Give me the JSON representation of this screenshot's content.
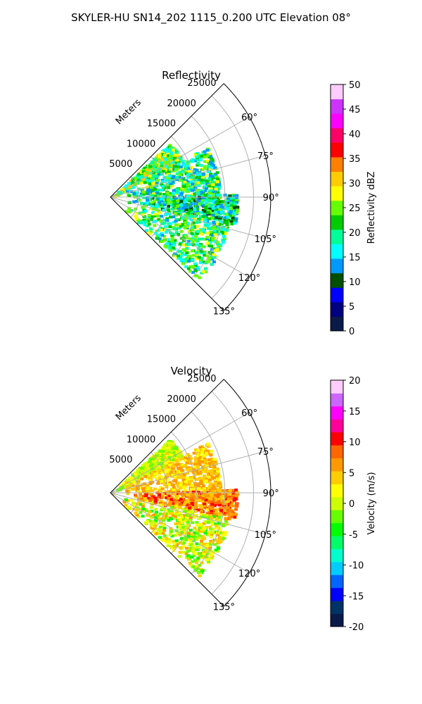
{
  "suptitle": "SKYLER-HU  SN14_202  1115_0.200 UTC Elevation 08°",
  "chart_data": [
    {
      "type": "heatmap",
      "projection": "polar-sector",
      "title": "Reflectivity",
      "range_label": "Meters",
      "range_ticks": [
        5000,
        10000,
        15000,
        20000,
        25000
      ],
      "range_max": 28000,
      "azimuth_range_deg": [
        45,
        135
      ],
      "azimuth_ticks": [
        "60°",
        "75°",
        "90°",
        "105°",
        "120°",
        "135°"
      ],
      "azimuth_tick_values": [
        60,
        75,
        90,
        105,
        120,
        135
      ],
      "grid": true,
      "colorbar": {
        "label": "Reflectivity dBZ",
        "min": 0,
        "max": 50,
        "ticks": [
          0,
          5,
          10,
          15,
          20,
          25,
          30,
          35,
          40,
          45,
          50
        ],
        "colors": [
          "#0a1a4a",
          "#000080",
          "#0000ff",
          "#005000",
          "#0099ff",
          "#00ffff",
          "#00ff99",
          "#00cc00",
          "#66ff00",
          "#ffff00",
          "#ffcc00",
          "#ff8000",
          "#ff0000",
          "#ff0066",
          "#ff00ff",
          "#cc33ff",
          "#ffccff"
        ]
      },
      "echo_regions": [
        {
          "az": [
            47,
            62
          ],
          "r": [
            0,
            14000
          ],
          "value_range": [
            15,
            32
          ]
        },
        {
          "az": [
            62,
            88
          ],
          "r": [
            2000,
            19000
          ],
          "value_range": [
            12,
            28
          ]
        },
        {
          "az": [
            88,
            102
          ],
          "r": [
            3000,
            22000
          ],
          "value_range": [
            10,
            26
          ]
        },
        {
          "az": [
            102,
            133
          ],
          "r": [
            2000,
            21000
          ],
          "value_range": [
            14,
            28
          ]
        }
      ]
    },
    {
      "type": "heatmap",
      "projection": "polar-sector",
      "title": "Velocity",
      "range_label": "Meters",
      "range_ticks": [
        5000,
        10000,
        15000,
        20000,
        25000
      ],
      "range_max": 28000,
      "azimuth_range_deg": [
        45,
        135
      ],
      "azimuth_ticks": [
        "60°",
        "75°",
        "90°",
        "105°",
        "120°",
        "135°"
      ],
      "azimuth_tick_values": [
        60,
        75,
        90,
        105,
        120,
        135
      ],
      "grid": true,
      "colorbar": {
        "label": "Velocity (m/s)",
        "min": -20,
        "max": 20,
        "ticks": [
          -20,
          -15,
          -10,
          -5,
          0,
          5,
          10,
          15,
          20
        ],
        "colors": [
          "#0a1a4a",
          "#003366",
          "#0000ff",
          "#0066ff",
          "#00ccff",
          "#00ffcc",
          "#00ff66",
          "#00ff00",
          "#66ff00",
          "#ccff00",
          "#ffff00",
          "#ffcc00",
          "#ff9900",
          "#ff6600",
          "#ff0000",
          "#ff0099",
          "#ff00ff",
          "#cc66ff",
          "#ffccff"
        ]
      },
      "echo_regions": [
        {
          "az": [
            47,
            62
          ],
          "r": [
            0,
            14000
          ],
          "value_range": [
            -3,
            4
          ]
        },
        {
          "az": [
            62,
            88
          ],
          "r": [
            2000,
            19000
          ],
          "value_range": [
            2,
            7
          ]
        },
        {
          "az": [
            88,
            102
          ],
          "r": [
            3000,
            22000
          ],
          "value_range": [
            3,
            11
          ]
        },
        {
          "az": [
            102,
            133
          ],
          "r": [
            2000,
            21000
          ],
          "value_range": [
            -4,
            6
          ]
        }
      ]
    }
  ]
}
